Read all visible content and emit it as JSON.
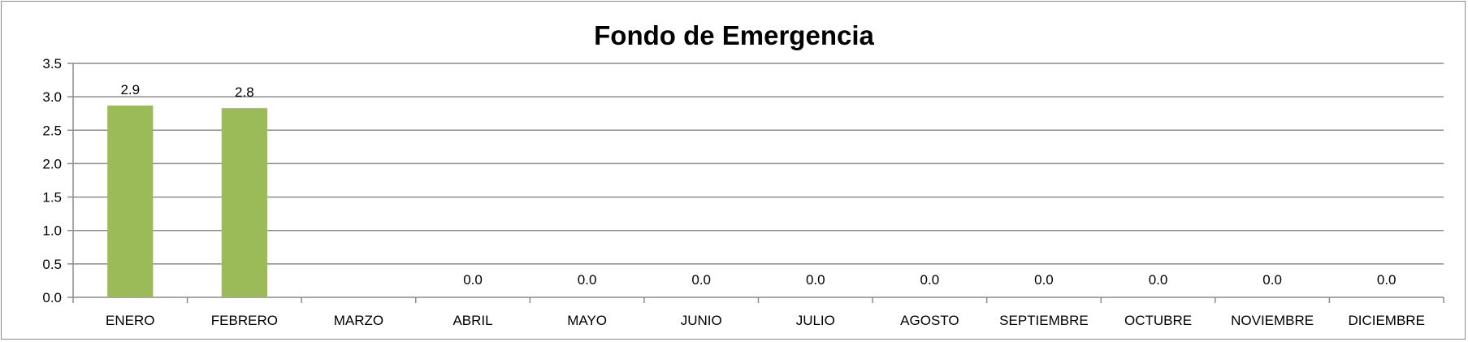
{
  "chart_data": {
    "type": "bar",
    "title": "Fondo de Emergencia",
    "xlabel": "",
    "ylabel": "",
    "categories": [
      "ENERO",
      "FEBRERO",
      "MARZO",
      "ABRIL",
      "MAYO",
      "JUNIO",
      "JULIO",
      "AGOSTO",
      "SEPTIEMBRE",
      "OCTUBRE",
      "NOVIEMBRE",
      "DICIEMBRE"
    ],
    "values": [
      2.87,
      2.83,
      null,
      0,
      0,
      0,
      0,
      0,
      0,
      0,
      0,
      0
    ],
    "data_labels": [
      "2.9",
      "2.8",
      "",
      "0.0",
      "0.0",
      "0.0",
      "0.0",
      "0.0",
      "0.0",
      "0.0",
      "0.0",
      "0.0"
    ],
    "yticks": [
      "0.0",
      "0.5",
      "1.0",
      "1.5",
      "2.0",
      "2.5",
      "3.0",
      "3.5"
    ],
    "ylim": [
      0,
      3.5
    ],
    "grid": true,
    "legend": "none",
    "colors": {
      "bar": "#9bbb59",
      "grid": "#8c8c8c",
      "axis": "#8c8c8c"
    }
  }
}
